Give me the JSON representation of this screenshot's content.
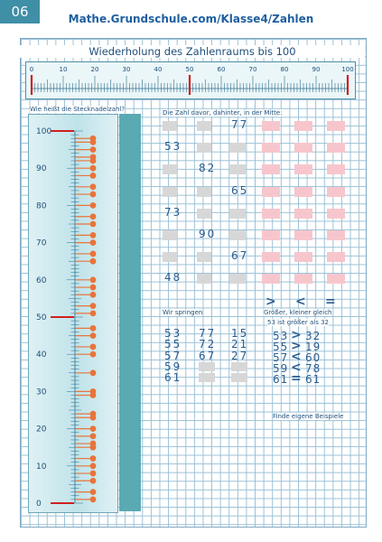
{
  "page_tab": "06",
  "site_title": "Mathe.Grundschule.com/Klasse4/Zahlen",
  "worksheet_title": "Wiederholung des Zahlenraums bis 100",
  "ruler": {
    "labels": [
      "0",
      "10",
      "20",
      "30",
      "40",
      "50",
      "60",
      "70",
      "80",
      "90",
      "100"
    ],
    "markers": [
      0,
      50,
      100
    ]
  },
  "pin_section": {
    "heading": "Wie heißt die Stecknadelzahl?",
    "scale_labels": [
      "100",
      "90",
      "80",
      "70",
      "60",
      "50",
      "40",
      "30",
      "20",
      "10",
      "0"
    ],
    "pins": [
      1,
      3,
      6,
      8,
      10,
      12,
      15,
      16,
      18,
      20,
      23,
      24,
      29,
      30,
      35,
      40,
      42,
      45,
      47,
      51,
      53,
      56,
      58,
      60,
      65,
      67,
      70,
      72,
      75,
      77,
      80,
      83,
      85,
      88,
      90,
      92,
      93,
      95,
      97,
      98
    ],
    "long_markers": [
      0,
      50,
      100
    ]
  },
  "neighbors": {
    "heading": "Die Zahl davor, dahinter, in der Mitte:",
    "rows": [
      {
        "col": 2,
        "value": "77"
      },
      {
        "col": 0,
        "value": "53"
      },
      {
        "col": 1,
        "value": "82"
      },
      {
        "col": 2,
        "value": "65"
      },
      {
        "col": 0,
        "value": "73"
      },
      {
        "col": 1,
        "value": "90"
      },
      {
        "col": 2,
        "value": "67"
      },
      {
        "col": 0,
        "value": "48"
      }
    ]
  },
  "jumps": {
    "heading": "Wir springen",
    "col1": [
      "53",
      "55",
      "57",
      "59",
      "61"
    ],
    "col2": [
      "77",
      "72",
      "67"
    ],
    "col3": [
      "15",
      "21",
      "27"
    ]
  },
  "compare": {
    "symbols": [
      ">",
      "<",
      "="
    ],
    "heading": "Größer, kleiner gleich",
    "example": "53 ist größer als 32",
    "rows": [
      {
        "left": "53",
        "op": ">",
        "right": "32"
      },
      {
        "left": "55",
        "op": ">",
        "right": "19"
      },
      {
        "left": "57",
        "op": "<",
        "right": "60"
      },
      {
        "left": "59",
        "op": "<",
        "right": "78"
      },
      {
        "left": "61",
        "op": "=",
        "right": "61"
      }
    ],
    "footer": "Finde eigene Beispiele"
  },
  "colors": {
    "accent": "#3f8fa6",
    "pin": "#e8743b",
    "marker": "#d11f1f",
    "pink": "#f7c6cc",
    "grey": "#d7d7d7"
  }
}
